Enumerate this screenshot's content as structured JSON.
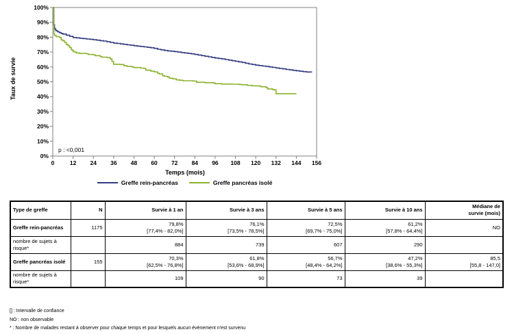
{
  "chart_data": {
    "type": "line",
    "subtype": "kaplan-meier-step",
    "title": "",
    "xlabel": "Temps (mois)",
    "ylabel": "Taux de survie",
    "xlim": [
      0,
      156
    ],
    "ylim": [
      0,
      100
    ],
    "x_ticks": [
      0,
      12,
      24,
      36,
      48,
      60,
      72,
      84,
      96,
      108,
      120,
      132,
      144,
      156
    ],
    "y_tick_step": 10,
    "y_tick_suffix": "%",
    "grid": false,
    "legend_position": "bottom",
    "annotation": "p : <0,001",
    "axis_color": "#7f7f7f",
    "series": [
      {
        "name": "Greffe rein-pancréas",
        "color": "#303a80",
        "points": [
          [
            0,
            100
          ],
          [
            0.6,
            88.5
          ],
          [
            1,
            86
          ],
          [
            1.5,
            85
          ],
          [
            2,
            84.3
          ],
          [
            3,
            83.6
          ],
          [
            4,
            83.1
          ],
          [
            5,
            82.6
          ],
          [
            6,
            82.1
          ],
          [
            8,
            81.4
          ],
          [
            10,
            80.6
          ],
          [
            12,
            79.8
          ],
          [
            14,
            79.6
          ],
          [
            16,
            79.3
          ],
          [
            18,
            79.1
          ],
          [
            20,
            78.8
          ],
          [
            22,
            78.6
          ],
          [
            24,
            78.3
          ],
          [
            26,
            78.0
          ],
          [
            28,
            77.7
          ],
          [
            30,
            77.4
          ],
          [
            32,
            77.0
          ],
          [
            34,
            76.5
          ],
          [
            36,
            76.1
          ],
          [
            38,
            75.8
          ],
          [
            40,
            75.5
          ],
          [
            42,
            75.2
          ],
          [
            44,
            74.9
          ],
          [
            46,
            74.6
          ],
          [
            48,
            74.3
          ],
          [
            50,
            74.0
          ],
          [
            52,
            73.8
          ],
          [
            54,
            73.5
          ],
          [
            56,
            73.2
          ],
          [
            58,
            72.9
          ],
          [
            60,
            72.5
          ],
          [
            62,
            71.9
          ],
          [
            64,
            71.5
          ],
          [
            66,
            71.1
          ],
          [
            68,
            70.8
          ],
          [
            70,
            70.6
          ],
          [
            72,
            70.3
          ],
          [
            74,
            70.0
          ],
          [
            76,
            69.7
          ],
          [
            78,
            69.4
          ],
          [
            80,
            69.1
          ],
          [
            82,
            68.8
          ],
          [
            84,
            68.4
          ],
          [
            86,
            68.0
          ],
          [
            88,
            67.6
          ],
          [
            90,
            67.2
          ],
          [
            92,
            66.8
          ],
          [
            94,
            66.4
          ],
          [
            96,
            66.0
          ],
          [
            98,
            65.7
          ],
          [
            100,
            65.4
          ],
          [
            102,
            65.0
          ],
          [
            104,
            64.6
          ],
          [
            106,
            64.2
          ],
          [
            108,
            63.8
          ],
          [
            110,
            63.4
          ],
          [
            112,
            63.0
          ],
          [
            114,
            62.5
          ],
          [
            116,
            62.0
          ],
          [
            118,
            61.6
          ],
          [
            120,
            61.2
          ],
          [
            122,
            60.9
          ],
          [
            124,
            60.6
          ],
          [
            126,
            60.3
          ],
          [
            128,
            60.0
          ],
          [
            130,
            59.7
          ],
          [
            132,
            59.3
          ],
          [
            134,
            59.0
          ],
          [
            136,
            58.7
          ],
          [
            138,
            58.3
          ],
          [
            140,
            58.0
          ],
          [
            142,
            57.7
          ],
          [
            144,
            57.4
          ],
          [
            146,
            57.1
          ],
          [
            148,
            56.8
          ],
          [
            150,
            56.6
          ],
          [
            153,
            56.3
          ]
        ]
      },
      {
        "name": "Greffe pancréas isolé",
        "color": "#8ab22e",
        "points": [
          [
            0,
            100
          ],
          [
            0.7,
            82.5
          ],
          [
            1,
            81.2
          ],
          [
            2,
            80.4
          ],
          [
            4,
            79.8
          ],
          [
            5,
            78.2
          ],
          [
            6,
            77.6
          ],
          [
            7,
            76.6
          ],
          [
            8,
            75.2
          ],
          [
            9,
            74.3
          ],
          [
            10,
            73.0
          ],
          [
            11,
            71.5
          ],
          [
            12,
            70.3
          ],
          [
            13,
            70.0
          ],
          [
            14,
            69.4
          ],
          [
            16,
            69.1
          ],
          [
            20,
            68.9
          ],
          [
            21,
            68.4
          ],
          [
            24,
            68.2
          ],
          [
            25,
            67.6
          ],
          [
            28,
            67.0
          ],
          [
            29,
            66.6
          ],
          [
            32,
            66.3
          ],
          [
            34,
            65.4
          ],
          [
            35,
            63.6
          ],
          [
            36,
            61.8
          ],
          [
            40,
            61.6
          ],
          [
            42,
            60.8
          ],
          [
            44,
            60.3
          ],
          [
            47,
            59.9
          ],
          [
            48,
            59.6
          ],
          [
            52,
            59.2
          ],
          [
            54,
            59.0
          ],
          [
            55,
            57.9
          ],
          [
            58,
            57.2
          ],
          [
            60,
            56.7
          ],
          [
            62,
            55.8
          ],
          [
            63,
            55.3
          ],
          [
            65,
            54.1
          ],
          [
            66,
            53.7
          ],
          [
            68,
            53.2
          ],
          [
            69,
            52.4
          ],
          [
            71,
            52.0
          ],
          [
            73,
            51.3
          ],
          [
            75,
            51.0
          ],
          [
            77,
            50.7
          ],
          [
            83,
            50.5
          ],
          [
            85,
            49.7
          ],
          [
            90,
            49.4
          ],
          [
            95,
            49.2
          ],
          [
            96,
            48.7
          ],
          [
            100,
            48.5
          ],
          [
            105,
            48.4
          ],
          [
            110,
            48.2
          ],
          [
            112,
            48.0
          ],
          [
            115,
            47.6
          ],
          [
            118,
            47.3
          ],
          [
            120,
            47.2
          ],
          [
            123,
            46.7
          ],
          [
            126,
            46.2
          ],
          [
            127,
            45.2
          ],
          [
            130,
            44.8
          ],
          [
            131,
            44.5
          ],
          [
            132,
            42.0
          ],
          [
            144,
            42.0
          ]
        ]
      }
    ]
  },
  "table": {
    "headers": {
      "type": "Type de greffe",
      "n": "N",
      "s1": "Survie à 1 an",
      "s3": "Survie à 3 ans",
      "s5": "Survie à 5 ans",
      "s10": "Survie à 10 ans",
      "median_1": "Médiane de",
      "median_2": "survie (mois)"
    },
    "rows": [
      {
        "type": "Greffe rein-pancréas",
        "n": "1175",
        "s1": "79,8%",
        "s1_ci": "[77,4% - 82,0%]",
        "s3": "76,1%",
        "s3_ci": "[73,5% - 78,5%]",
        "s5": "72,5%",
        "s5_ci": "[69,7% - 75,0%]",
        "s10": "61,2%",
        "s10_ci": "[57,8% - 64,4%]",
        "median": "NO",
        "median_ci": ""
      },
      {
        "type": "nombre de sujets à risque*",
        "n": "",
        "s1": "884",
        "s3": "739",
        "s5": "607",
        "s10": "290",
        "median": ""
      },
      {
        "type": "Greffe pancréas isolé",
        "n": "155",
        "s1": "70,3%",
        "s1_ci": "[62,5% - 76,8%]",
        "s3": "61,8%",
        "s3_ci": "[53,6% - 68,9%]",
        "s5": "56,7%",
        "s5_ci": "[48,4% - 64,2%]",
        "s10": "47,2%",
        "s10_ci": "[38,6% - 55,3%]",
        "median": "85,5",
        "median_ci": "[55,8 - 147,0]"
      },
      {
        "type": "nombre de sujets à risque*",
        "n": "",
        "s1": "109",
        "s3": "90",
        "s5": "73",
        "s10": "39",
        "median": ""
      }
    ]
  },
  "footnotes": [
    "[] : Intervalle de confiance",
    "NO : non observable",
    "* : Nombre de malades restant à observer pour chaque temps et pour lesquels aucun évènement n'est survenu"
  ]
}
